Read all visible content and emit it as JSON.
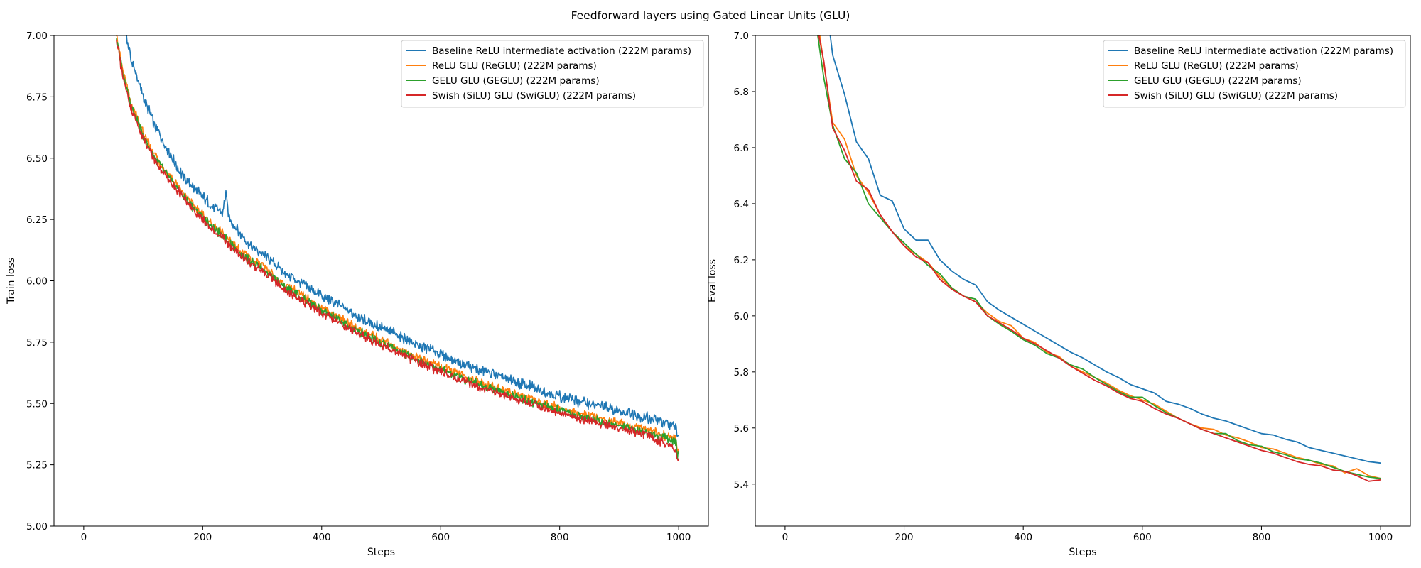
{
  "figure": {
    "title": "Feedforward layers using Gated Linear Units (GLU)"
  },
  "colors": {
    "baseline": "#1f77b4",
    "reglu": "#ff7f0e",
    "geglu": "#2ca02c",
    "swiglu": "#d62728"
  },
  "chart_data": [
    {
      "type": "line",
      "xlabel": "Steps",
      "ylabel": "Train loss",
      "xlim": [
        -50,
        1050
      ],
      "ylim": [
        5.0,
        7.0
      ],
      "xticks": [
        0,
        200,
        400,
        600,
        800,
        1000
      ],
      "yticks": [
        5.0,
        5.25,
        5.5,
        5.75,
        6.0,
        6.25,
        6.5,
        6.75,
        7.0
      ],
      "ytick_labels": [
        "5.00",
        "5.25",
        "5.50",
        "5.75",
        "6.00",
        "6.25",
        "6.50",
        "6.75",
        "7.00"
      ],
      "grid": false,
      "legend": "upper right",
      "series": [
        {
          "name": "Baseline ReLU intermediate activation (222M params)",
          "color": "#1f77b4",
          "x": [
            60,
            70,
            80,
            100,
            120,
            140,
            160,
            180,
            200,
            220,
            240,
            260,
            280,
            300,
            340,
            380,
            400,
            450,
            500,
            550,
            600,
            650,
            700,
            750,
            800,
            850,
            900,
            950,
            1000
          ],
          "y": [
            7.1,
            7.02,
            6.9,
            6.75,
            6.63,
            6.54,
            6.45,
            6.39,
            6.34,
            6.3,
            6.27,
            6.2,
            6.14,
            6.11,
            6.03,
            5.97,
            5.94,
            5.87,
            5.81,
            5.75,
            5.7,
            5.65,
            5.61,
            5.57,
            5.53,
            5.5,
            5.47,
            5.44,
            5.4
          ]
        },
        {
          "name": "ReLU GLU (ReGLU) (222M params)",
          "color": "#ff7f0e",
          "x": [
            55,
            65,
            80,
            100,
            120,
            140,
            160,
            180,
            200,
            220,
            240,
            260,
            280,
            300,
            340,
            380,
            400,
            450,
            500,
            550,
            600,
            650,
            700,
            750,
            800,
            850,
            900,
            950,
            1000
          ],
          "y": [
            7.0,
            6.86,
            6.72,
            6.6,
            6.51,
            6.44,
            6.38,
            6.32,
            6.27,
            6.22,
            6.18,
            6.13,
            6.09,
            6.06,
            5.98,
            5.92,
            5.89,
            5.82,
            5.76,
            5.7,
            5.65,
            5.6,
            5.56,
            5.52,
            5.48,
            5.45,
            5.42,
            5.39,
            5.35
          ]
        },
        {
          "name": "GELU GLU (GEGLU) (222M params)",
          "color": "#2ca02c",
          "x": [
            55,
            65,
            80,
            100,
            120,
            140,
            160,
            180,
            200,
            220,
            240,
            260,
            280,
            300,
            340,
            380,
            400,
            450,
            500,
            550,
            600,
            650,
            700,
            750,
            800,
            850,
            900,
            950,
            1000
          ],
          "y": [
            6.99,
            6.85,
            6.71,
            6.59,
            6.5,
            6.43,
            6.37,
            6.31,
            6.26,
            6.21,
            6.17,
            6.12,
            6.08,
            6.05,
            5.97,
            5.91,
            5.88,
            5.81,
            5.75,
            5.69,
            5.64,
            5.59,
            5.55,
            5.51,
            5.47,
            5.44,
            5.41,
            5.38,
            5.34
          ]
        },
        {
          "name": "Swish (SiLU) GLU (SwiGLU) (222M params)",
          "color": "#d62728",
          "x": [
            55,
            65,
            80,
            100,
            120,
            140,
            160,
            180,
            200,
            220,
            240,
            260,
            280,
            300,
            340,
            380,
            400,
            450,
            500,
            550,
            600,
            650,
            700,
            750,
            800,
            850,
            900,
            950,
            1000
          ],
          "y": [
            6.98,
            6.84,
            6.7,
            6.58,
            6.49,
            6.42,
            6.36,
            6.3,
            6.25,
            6.2,
            6.16,
            6.11,
            6.07,
            6.04,
            5.96,
            5.9,
            5.87,
            5.8,
            5.74,
            5.68,
            5.63,
            5.58,
            5.54,
            5.5,
            5.46,
            5.43,
            5.4,
            5.37,
            5.31
          ]
        }
      ]
    },
    {
      "type": "line",
      "xlabel": "Steps",
      "ylabel": "Eval loss",
      "xlim": [
        -50,
        1050
      ],
      "ylim": [
        5.25,
        7.0
      ],
      "xticks": [
        0,
        200,
        400,
        600,
        800,
        1000
      ],
      "yticks": [
        5.4,
        5.6,
        5.8,
        6.0,
        6.2,
        6.4,
        6.6,
        6.8,
        7.0
      ],
      "ytick_labels": [
        "5.4",
        "5.6",
        "5.8",
        "6.0",
        "6.2",
        "6.4",
        "6.6",
        "6.8",
        "7.0"
      ],
      "grid": false,
      "legend": "upper right",
      "series": [
        {
          "name": "Baseline ReLU intermediate activation (222M params)",
          "color": "#1f77b4",
          "x": [
            60,
            70,
            80,
            100,
            120,
            140,
            160,
            180,
            200,
            220,
            240,
            260,
            280,
            300,
            320,
            340,
            360,
            380,
            400,
            420,
            440,
            460,
            480,
            500,
            520,
            540,
            560,
            580,
            600,
            620,
            640,
            660,
            680,
            700,
            720,
            740,
            760,
            780,
            800,
            820,
            840,
            860,
            880,
            900,
            920,
            940,
            960,
            980,
            1000
          ],
          "y": [
            7.35,
            7.1,
            6.93,
            6.79,
            6.62,
            6.56,
            6.43,
            6.41,
            6.31,
            6.27,
            6.27,
            6.2,
            6.16,
            6.13,
            6.11,
            6.05,
            6.02,
            5.995,
            5.97,
            5.945,
            5.92,
            5.895,
            5.87,
            5.85,
            5.825,
            5.8,
            5.78,
            5.755,
            5.74,
            5.725,
            5.695,
            5.685,
            5.67,
            5.65,
            5.635,
            5.625,
            5.61,
            5.595,
            5.58,
            5.575,
            5.56,
            5.55,
            5.53,
            5.52,
            5.51,
            5.5,
            5.49,
            5.48,
            5.475
          ]
        },
        {
          "name": "ReLU GLU (ReGLU) (222M params)",
          "color": "#ff7f0e",
          "x": [
            55,
            65,
            80,
            100,
            120,
            140,
            160,
            180,
            200,
            220,
            240,
            260,
            280,
            300,
            320,
            340,
            360,
            380,
            400,
            420,
            440,
            460,
            480,
            500,
            520,
            540,
            560,
            580,
            600,
            620,
            640,
            660,
            680,
            700,
            720,
            740,
            760,
            780,
            800,
            820,
            840,
            860,
            880,
            900,
            920,
            940,
            960,
            980,
            1000
          ],
          "y": [
            7.05,
            6.9,
            6.69,
            6.63,
            6.5,
            6.44,
            6.36,
            6.3,
            6.25,
            6.22,
            6.19,
            6.14,
            6.1,
            6.07,
            6.05,
            6.01,
            5.98,
            5.965,
            5.92,
            5.905,
            5.87,
            5.855,
            5.82,
            5.8,
            5.78,
            5.76,
            5.735,
            5.715,
            5.7,
            5.685,
            5.66,
            5.635,
            5.615,
            5.6,
            5.595,
            5.575,
            5.565,
            5.55,
            5.53,
            5.525,
            5.51,
            5.495,
            5.485,
            5.47,
            5.465,
            5.44,
            5.455,
            5.43,
            5.42
          ]
        },
        {
          "name": "GELU GLU (GEGLU) (222M params)",
          "color": "#2ca02c",
          "x": [
            55,
            65,
            80,
            100,
            120,
            140,
            160,
            180,
            200,
            220,
            240,
            260,
            280,
            300,
            320,
            340,
            360,
            380,
            400,
            420,
            440,
            460,
            480,
            500,
            520,
            540,
            560,
            580,
            600,
            620,
            640,
            660,
            680,
            700,
            720,
            740,
            760,
            780,
            800,
            820,
            840,
            860,
            880,
            900,
            920,
            940,
            960,
            980,
            1000
          ],
          "y": [
            7.0,
            6.85,
            6.68,
            6.56,
            6.51,
            6.4,
            6.35,
            6.3,
            6.26,
            6.22,
            6.18,
            6.15,
            6.1,
            6.07,
            6.06,
            6.0,
            5.97,
            5.945,
            5.915,
            5.895,
            5.865,
            5.85,
            5.825,
            5.81,
            5.78,
            5.755,
            5.73,
            5.71,
            5.71,
            5.68,
            5.655,
            5.635,
            5.615,
            5.595,
            5.58,
            5.58,
            5.555,
            5.54,
            5.535,
            5.515,
            5.505,
            5.49,
            5.485,
            5.475,
            5.46,
            5.445,
            5.435,
            5.425,
            5.42
          ]
        },
        {
          "name": "Swish (SiLU) GLU (SwiGLU) (222M params)",
          "color": "#d62728",
          "x": [
            55,
            65,
            80,
            100,
            120,
            140,
            160,
            180,
            200,
            220,
            240,
            260,
            280,
            300,
            320,
            340,
            360,
            380,
            400,
            420,
            440,
            460,
            480,
            500,
            520,
            540,
            560,
            580,
            600,
            620,
            640,
            660,
            680,
            700,
            720,
            740,
            760,
            780,
            800,
            820,
            840,
            860,
            880,
            900,
            920,
            940,
            960,
            980,
            1000
          ],
          "y": [
            7.02,
            6.91,
            6.67,
            6.59,
            6.48,
            6.45,
            6.36,
            6.3,
            6.25,
            6.21,
            6.19,
            6.13,
            6.095,
            6.07,
            6.05,
            6.0,
            5.975,
            5.95,
            5.92,
            5.9,
            5.875,
            5.85,
            5.82,
            5.795,
            5.77,
            5.75,
            5.725,
            5.705,
            5.695,
            5.67,
            5.65,
            5.635,
            5.615,
            5.595,
            5.58,
            5.565,
            5.55,
            5.535,
            5.52,
            5.51,
            5.495,
            5.48,
            5.47,
            5.465,
            5.45,
            5.445,
            5.43,
            5.41,
            5.415
          ]
        }
      ]
    }
  ]
}
